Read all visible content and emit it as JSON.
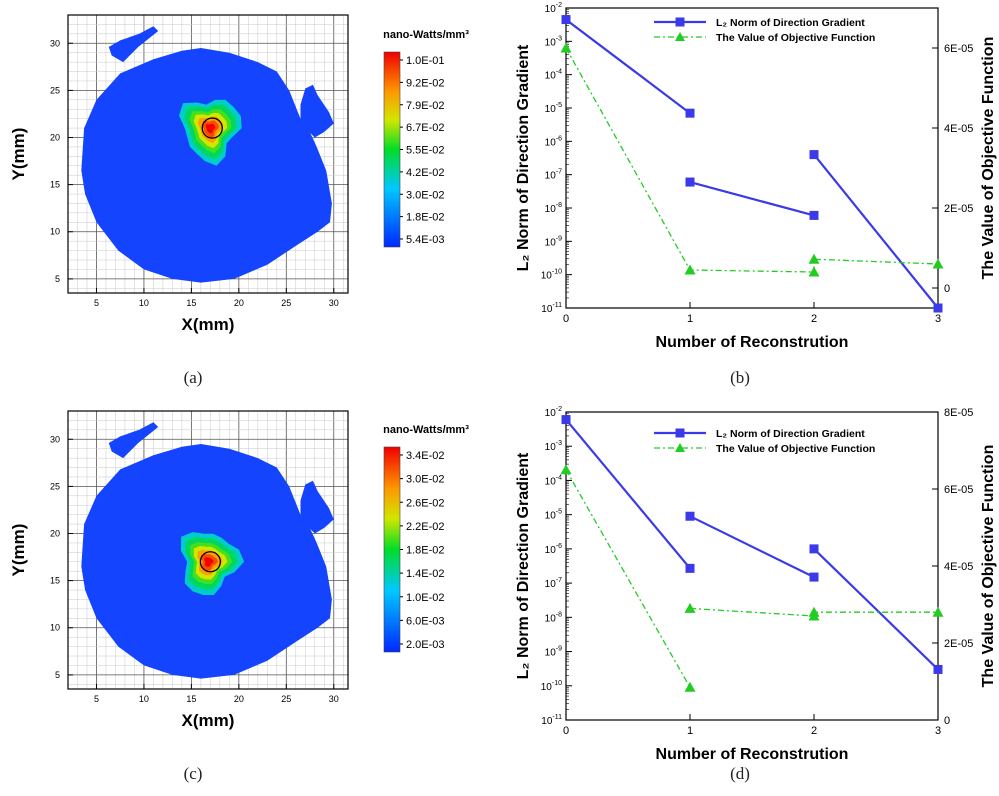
{
  "chart_data": [
    {
      "type": "heatmap",
      "panel_label": "(a)",
      "xlabel": "X(mm)",
      "ylabel": "Y(mm)",
      "x_ticks": [
        5,
        10,
        15,
        20,
        25,
        30
      ],
      "y_ticks": [
        5,
        10,
        15,
        20,
        25,
        30
      ],
      "xlim": [
        2,
        31.5
      ],
      "ylim": [
        3.5,
        33
      ],
      "colorbar_title": "nano-Watts/mm³",
      "colorbar_labels": [
        "1.0E-01",
        "9.2E-02",
        "7.9E-02",
        "6.7E-02",
        "5.5E-02",
        "4.2E-02",
        "3.0E-02",
        "1.8E-02",
        "5.4E-03"
      ],
      "hotspot_center": [
        17,
        21
      ],
      "marker_circle_center": [
        17.2,
        21
      ]
    },
    {
      "type": "line",
      "panel_label": "(b)",
      "xlabel": "Number of Reconstrution",
      "ylabel": "L₂ Norm of Direction Gradient",
      "ylabel2": "The Value of Objective Function",
      "x_ticks": [
        0,
        1,
        2,
        3
      ],
      "y_tick_exponents": [
        -11,
        -10,
        -9,
        -8,
        -7,
        -6,
        -5,
        -4,
        -3,
        -2
      ],
      "y2_tick_labels": [
        "0",
        "2E-05",
        "4E-05",
        "6E-05"
      ],
      "xlim": [
        0,
        3
      ],
      "ylim": [
        "1E-11",
        "1E-02"
      ],
      "y2lim": [
        -5e-06,
        7e-05
      ],
      "y_scale": "log",
      "legend_location": "top-right",
      "series": [
        {
          "name": "L₂ Norm of Direction Gradient",
          "axis": "left",
          "color": "#3a3ae8",
          "marker": "square",
          "segments": [
            [
              [
                0,
                0.0045
              ],
              [
                1,
                7e-06
              ]
            ],
            [
              [
                1,
                6e-08
              ],
              [
                2,
                6e-09
              ]
            ],
            [
              [
                2,
                4e-07
              ],
              [
                3,
                1e-11
              ]
            ]
          ]
        },
        {
          "name": "The Value of Objective Function",
          "axis": "right",
          "color": "#22cc22",
          "marker": "triangle",
          "segments": [
            [
              [
                0,
                6e-05
              ],
              [
                1,
                4.5e-06
              ],
              [
                2,
                4e-06
              ],
              [
                2,
                7.2e-06
              ],
              [
                3,
                6e-06
              ]
            ]
          ]
        }
      ]
    },
    {
      "type": "heatmap",
      "panel_label": "(c)",
      "xlabel": "X(mm)",
      "ylabel": "Y(mm)",
      "x_ticks": [
        5,
        10,
        15,
        20,
        25,
        30
      ],
      "y_ticks": [
        5,
        10,
        15,
        20,
        25,
        30
      ],
      "xlim": [
        2,
        31.5
      ],
      "ylim": [
        3.5,
        33
      ],
      "colorbar_title": "nano-Watts/mm³",
      "colorbar_labels": [
        "3.4E-02",
        "3.0E-02",
        "2.6E-02",
        "2.2E-02",
        "1.8E-02",
        "1.4E-02",
        "1.0E-02",
        "6.0E-03",
        "2.0E-03"
      ],
      "hotspot_center": [
        16.8,
        17
      ],
      "marker_circle_center": [
        17,
        17
      ]
    },
    {
      "type": "line",
      "panel_label": "(d)",
      "xlabel": "Number of Reconstrution",
      "ylabel": "L₂ Norm of Direction Gradient",
      "ylabel2": "The Value of Objective Function",
      "x_ticks": [
        0,
        1,
        2,
        3
      ],
      "y_tick_exponents": [
        -11,
        -10,
        -9,
        -8,
        -7,
        -6,
        -5,
        -4,
        -3,
        -2
      ],
      "y2_tick_labels": [
        "0",
        "2E-05",
        "4E-05",
        "6E-05",
        "8E-05"
      ],
      "xlim": [
        0,
        3
      ],
      "ylim": [
        "1E-11",
        "1E-02"
      ],
      "y2lim": [
        0,
        8e-05
      ],
      "y_scale": "log",
      "legend_location": "top-right",
      "series": [
        {
          "name": "L₂ Norm of Direction Gradient",
          "axis": "left",
          "color": "#3a3ae8",
          "marker": "square",
          "segments": [
            [
              [
                0,
                0.006
              ],
              [
                1,
                2.7e-07
              ]
            ],
            [
              [
                1,
                9e-06
              ],
              [
                2,
                1.5e-07
              ]
            ],
            [
              [
                2,
                1e-06
              ],
              [
                3,
                3e-10
              ]
            ]
          ]
        },
        {
          "name": "The Value of Objective Function",
          "axis": "right",
          "color": "#22cc22",
          "marker": "triangle",
          "segments": [
            [
              [
                0,
                6.5e-05
              ],
              [
                1,
                8.5e-06
              ]
            ],
            [
              [
                1,
                2.9e-05
              ],
              [
                2,
                2.7e-05
              ],
              [
                2,
                2.8e-05
              ],
              [
                3,
                2.8e-05
              ]
            ]
          ]
        }
      ]
    }
  ]
}
